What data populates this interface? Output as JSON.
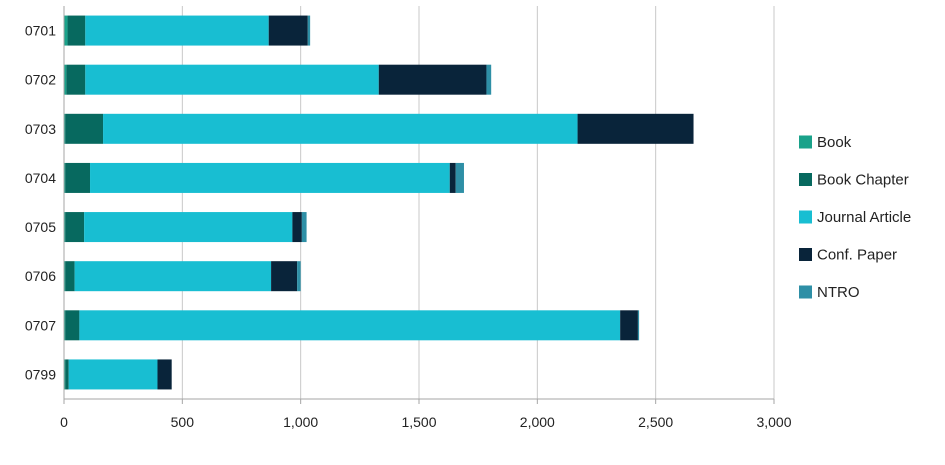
{
  "chart_data": {
    "type": "bar",
    "orientation": "horizontal",
    "stacked": true,
    "title": "",
    "xlabel": "",
    "ylabel": "",
    "categories": [
      "0701",
      "0702",
      "0703",
      "0704",
      "0705",
      "0706",
      "0707",
      "0799"
    ],
    "xlim": [
      0,
      3000
    ],
    "xticks": [
      "0",
      "500",
      "1,000",
      "1,500",
      "2,000",
      "2,500",
      "3,000"
    ],
    "xtick_values": [
      0,
      500,
      1000,
      1500,
      2000,
      2500,
      3000
    ],
    "grid": "vertical",
    "legend_position": "right",
    "series": [
      {
        "name": "Book",
        "color": "#1aa28a",
        "values": [
          15,
          10,
          5,
          5,
          5,
          5,
          5,
          5
        ]
      },
      {
        "name": "Book Chapter",
        "color": "#07695f",
        "values": [
          75,
          80,
          160,
          105,
          80,
          40,
          60,
          15
        ]
      },
      {
        "name": "Journal Article",
        "color": "#18bed2",
        "values": [
          775,
          1240,
          2005,
          1520,
          880,
          830,
          2285,
          375
        ]
      },
      {
        "name": "Conf. Paper",
        "color": "#09243a",
        "values": [
          165,
          455,
          490,
          25,
          40,
          110,
          75,
          60
        ]
      },
      {
        "name": "NTRO",
        "color": "#2e8fa6",
        "values": [
          10,
          20,
          0,
          35,
          20,
          15,
          5,
          0
        ]
      }
    ]
  }
}
